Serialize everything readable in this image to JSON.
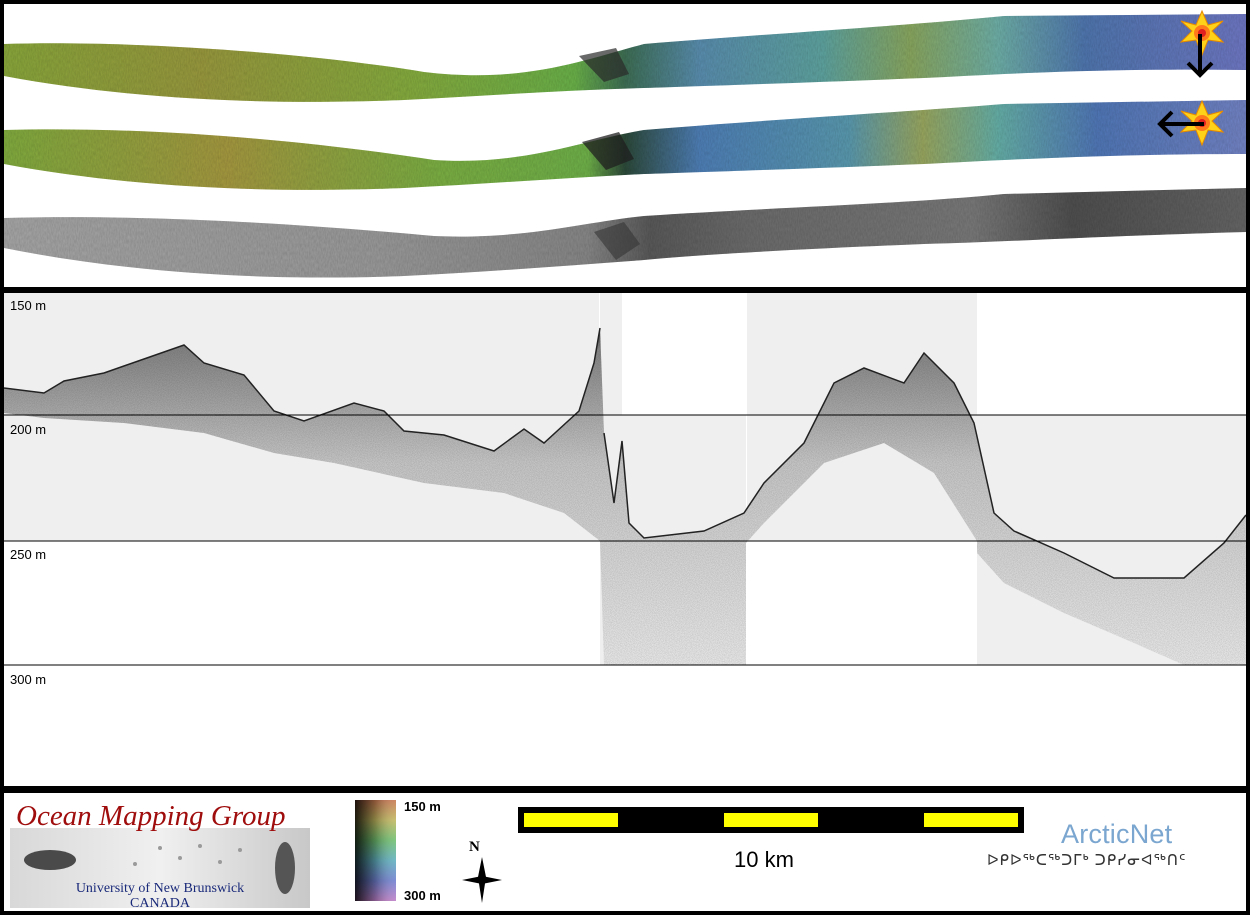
{
  "profile": {
    "depth_labels": [
      "150 m",
      "200 m",
      "250 m",
      "300 m"
    ]
  },
  "legend": {
    "colorbar_top": "150 m",
    "colorbar_bottom": "300 m",
    "north_letter": "N",
    "scale_label": "10 km"
  },
  "logo": {
    "title": "Ocean Mapping Group",
    "subtitle_1": "University of New Brunswick",
    "subtitle_2": "CANADA"
  },
  "partner": {
    "name": "ArcticNet",
    "syllabics": "ᐅᑭᐅᖅᑕᖅᑐᒥᒃ ᑐᑭᓯᓂᐊᖅᑎᑦ"
  },
  "icons": [
    "sun-marker-icon",
    "arrow-down-icon",
    "arrow-left-icon",
    "north-arrow-icon"
  ],
  "colors": {
    "logo_red": "#a00d0d",
    "logo_blue": "#1a2a7a",
    "arcticnet_blue": "#7aa6cf",
    "scalebar_yellow": "#ffff00"
  }
}
